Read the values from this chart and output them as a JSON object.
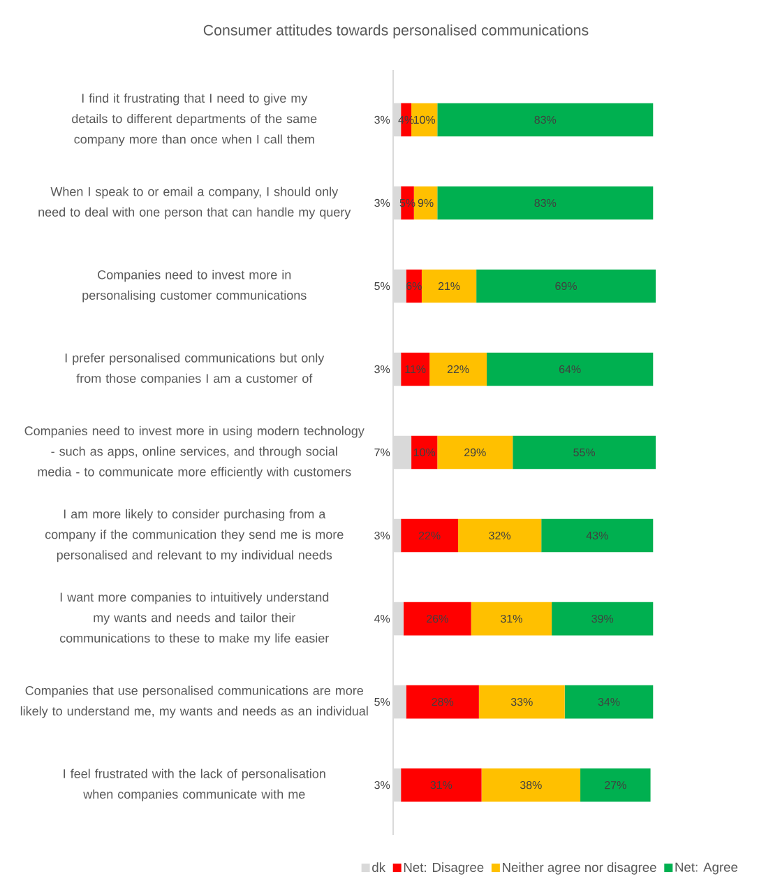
{
  "chart_data": {
    "type": "bar",
    "orientation": "horizontal",
    "stacked": true,
    "title": "Consumer attitudes towards personalised communications",
    "categories": [
      "I find it frustrating that I need to give my details to different departments of the same company more than once when I call them",
      "When I speak to or email a company, I should only need to deal with one person that can handle my query",
      "Companies need to invest more in personalising customer communications",
      "I prefer personalised communications but only from those companies I am a customer of",
      "Companies need to invest more in using modern technology - such as apps, online services, and through social media - to communicate more efficiently with customers",
      "I am more likely to consider purchasing from a company if the communication they send me is more personalised and relevant to my individual needs",
      "I want more companies to intuitively understand my wants and needs and tailor their communications to these to make my life easier",
      "Companies that use personalised communications are more likely to understand me, my wants and needs as an individual",
      "I feel frustrated with the lack of personalisation when companies communicate with me"
    ],
    "series": [
      {
        "name": "dk",
        "color": "#d9d9d9",
        "values": [
          3,
          3,
          5,
          3,
          7,
          3,
          4,
          5,
          3
        ],
        "value_labels": [
          "3%",
          "3%",
          "5%",
          "3%",
          "7%",
          "3%",
          "4%",
          "5%",
          "3%"
        ]
      },
      {
        "name": "Net: Disagree",
        "color": "#ff0000",
        "values": [
          4,
          5,
          6,
          11,
          10,
          22,
          26,
          28,
          31
        ],
        "value_labels": [
          "4%",
          "5%",
          "6%",
          "11%",
          "10%",
          "22%",
          "26%",
          "28%",
          "31%"
        ]
      },
      {
        "name": "Neither agree nor disagree",
        "color": "#ffc000",
        "values": [
          10,
          9,
          21,
          22,
          29,
          32,
          31,
          33,
          38
        ],
        "value_labels": [
          "10%",
          "9%",
          "21%",
          "22%",
          "29%",
          "32%",
          "31%",
          "33%",
          "38%"
        ]
      },
      {
        "name": "Net: Agree",
        "color": "#00b050",
        "values": [
          83,
          83,
          69,
          64,
          55,
          43,
          39,
          34,
          27
        ],
        "value_labels": [
          "83%",
          "83%",
          "69%",
          "64%",
          "55%",
          "43%",
          "39%",
          "34%",
          "27%"
        ]
      }
    ],
    "xlim": [
      0,
      101
    ],
    "tick_labels": "y",
    "legend": "bottom"
  }
}
